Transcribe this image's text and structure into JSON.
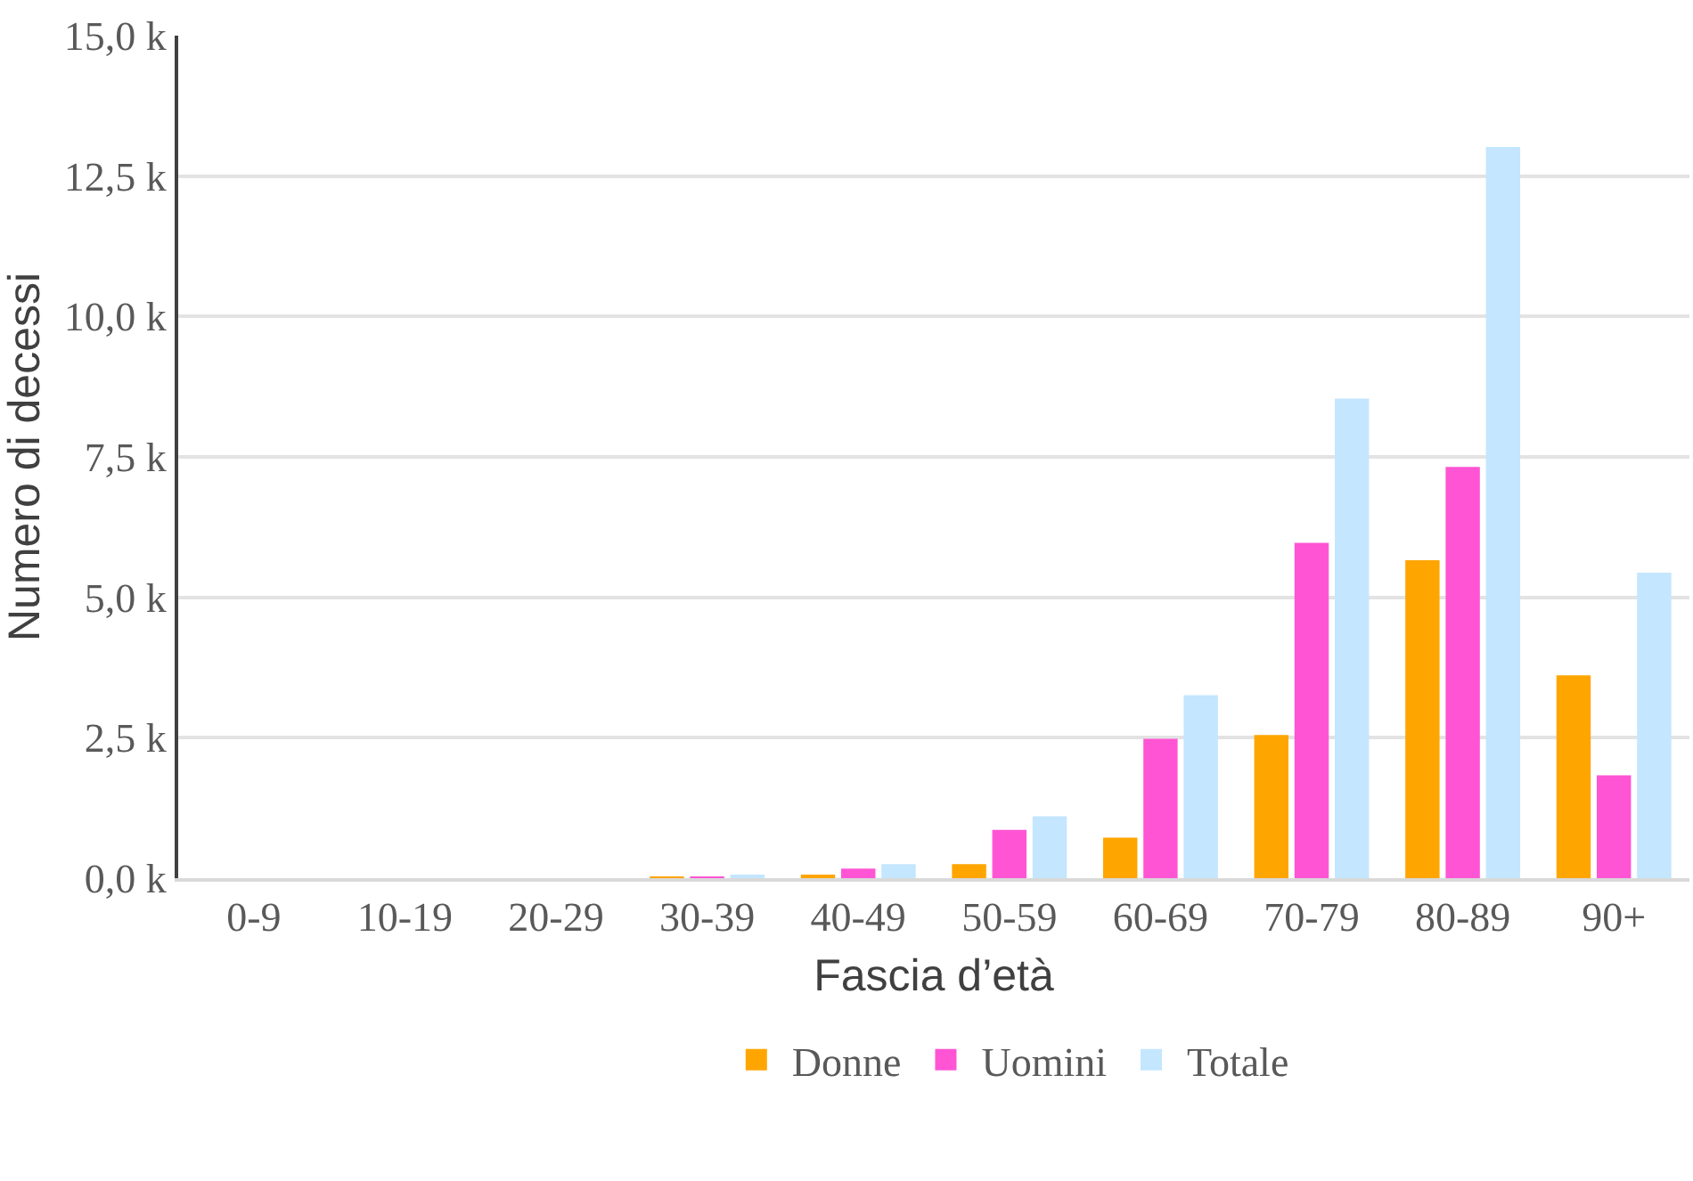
{
  "chart_data": {
    "type": "bar",
    "xlabel": "Fascia d’età",
    "ylabel": "Numero di decessi",
    "categories": [
      "0-9",
      "10-19",
      "20-29",
      "30-39",
      "40-49",
      "50-59",
      "60-69",
      "70-79",
      "80-89",
      "90+"
    ],
    "series": [
      {
        "name": "Donne",
        "color": "#ffa500",
        "values": [
          0,
          0,
          0,
          0.01,
          0.06,
          0.25,
          0.72,
          2.55,
          5.66,
          3.61
        ]
      },
      {
        "name": "Uomini",
        "color": "#ff55d4",
        "values": [
          0,
          0,
          0,
          0.03,
          0.17,
          0.86,
          2.48,
          5.97,
          7.32,
          1.83
        ]
      },
      {
        "name": "Totale",
        "color": "#c4e6ff",
        "values": [
          0,
          0,
          0,
          0.04,
          0.25,
          1.1,
          3.26,
          8.54,
          13.02,
          5.44
        ]
      }
    ],
    "ylim": [
      0,
      15
    ],
    "yticks": [
      {
        "value": 0,
        "label": "0,0 k"
      },
      {
        "value": 2.5,
        "label": "2,5 k"
      },
      {
        "value": 5,
        "label": "5,0 k"
      },
      {
        "value": 7.5,
        "label": "7,5 k"
      },
      {
        "value": 10,
        "label": "10,0 k"
      },
      {
        "value": 12.5,
        "label": "12,5 k"
      },
      {
        "value": 15,
        "label": "15,0 k"
      }
    ],
    "grid": "y",
    "legend": "bottom"
  }
}
